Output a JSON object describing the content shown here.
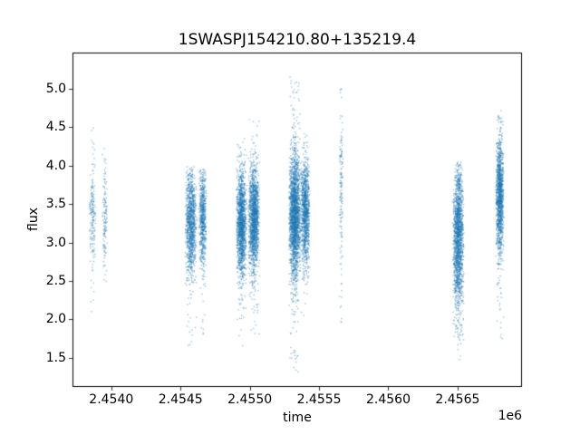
{
  "chart_data": {
    "type": "scatter",
    "title": "1SWASPJ154210.80+135219.4",
    "xlabel": "time",
    "ylabel": "flux",
    "x_offset_label": "1e6",
    "grid": false,
    "legend": "none",
    "marker_color": "#1f77b4",
    "marker_alpha": 0.5,
    "marker_size": 1.3,
    "xlim": [
      2453720,
      2456965
    ],
    "ylim": [
      1.12,
      5.47
    ],
    "x_ticks": [
      {
        "value": 2454000,
        "label": "2.4540"
      },
      {
        "value": 2454500,
        "label": "2.4545"
      },
      {
        "value": 2455000,
        "label": "2.4550"
      },
      {
        "value": 2455500,
        "label": "2.4555"
      },
      {
        "value": 2456000,
        "label": "2.4560"
      },
      {
        "value": 2456500,
        "label": "2.4565"
      }
    ],
    "y_ticks": [
      {
        "value": 1.5,
        "label": "1.5"
      },
      {
        "value": 2.0,
        "label": "2.0"
      },
      {
        "value": 2.5,
        "label": "2.5"
      },
      {
        "value": 3.0,
        "label": "3.0"
      },
      {
        "value": 3.5,
        "label": "3.5"
      },
      {
        "value": 4.0,
        "label": "4.0"
      },
      {
        "value": 4.5,
        "label": "4.5"
      },
      {
        "value": 5.0,
        "label": "5.0"
      }
    ],
    "clusters": [
      {
        "x_center": 2453865,
        "x_halfwidth": 25,
        "n_core": 160,
        "n_tail": 30,
        "flux_mean": 3.3,
        "flux_std": 0.28,
        "flux_min": 2.1,
        "flux_max": 4.5
      },
      {
        "x_center": 2453955,
        "x_halfwidth": 22,
        "n_core": 110,
        "n_tail": 25,
        "flux_mean": 3.3,
        "flux_std": 0.3,
        "flux_min": 2.4,
        "flux_max": 4.35
      },
      {
        "x_center": 2454575,
        "x_halfwidth": 45,
        "n_core": 1100,
        "n_tail": 60,
        "flux_mean": 3.25,
        "flux_std": 0.33,
        "flux_min": 1.65,
        "flux_max": 4.0
      },
      {
        "x_center": 2454660,
        "x_halfwidth": 28,
        "n_core": 650,
        "n_tail": 40,
        "flux_mean": 3.3,
        "flux_std": 0.3,
        "flux_min": 1.75,
        "flux_max": 3.95
      },
      {
        "x_center": 2454940,
        "x_halfwidth": 40,
        "n_core": 1500,
        "n_tail": 90,
        "flux_mean": 3.25,
        "flux_std": 0.34,
        "flux_min": 1.45,
        "flux_max": 4.35
      },
      {
        "x_center": 2455030,
        "x_halfwidth": 42,
        "n_core": 1600,
        "n_tail": 90,
        "flux_mean": 3.3,
        "flux_std": 0.33,
        "flux_min": 1.75,
        "flux_max": 4.6
      },
      {
        "x_center": 2455325,
        "x_halfwidth": 45,
        "n_core": 2200,
        "n_tail": 140,
        "flux_mean": 3.35,
        "flux_std": 0.4,
        "flux_min": 1.3,
        "flux_max": 5.2
      },
      {
        "x_center": 2455400,
        "x_halfwidth": 35,
        "n_core": 1100,
        "n_tail": 60,
        "flux_mean": 3.4,
        "flux_std": 0.33,
        "flux_min": 1.9,
        "flux_max": 4.45
      },
      {
        "x_center": 2455660,
        "x_halfwidth": 15,
        "n_core": 110,
        "n_tail": 45,
        "flux_mean": 3.8,
        "flux_std": 0.45,
        "flux_min": 1.95,
        "flux_max": 5.0
      },
      {
        "x_center": 2456505,
        "x_halfwidth": 42,
        "n_core": 1700,
        "n_tail": 80,
        "flux_mean": 3.05,
        "flux_std": 0.45,
        "flux_min": 1.4,
        "flux_max": 4.05
      },
      {
        "x_center": 2456805,
        "x_halfwidth": 30,
        "n_core": 1300,
        "n_tail": 70,
        "flux_mean": 3.6,
        "flux_std": 0.38,
        "flux_min": 1.7,
        "flux_max": 4.75
      }
    ]
  }
}
